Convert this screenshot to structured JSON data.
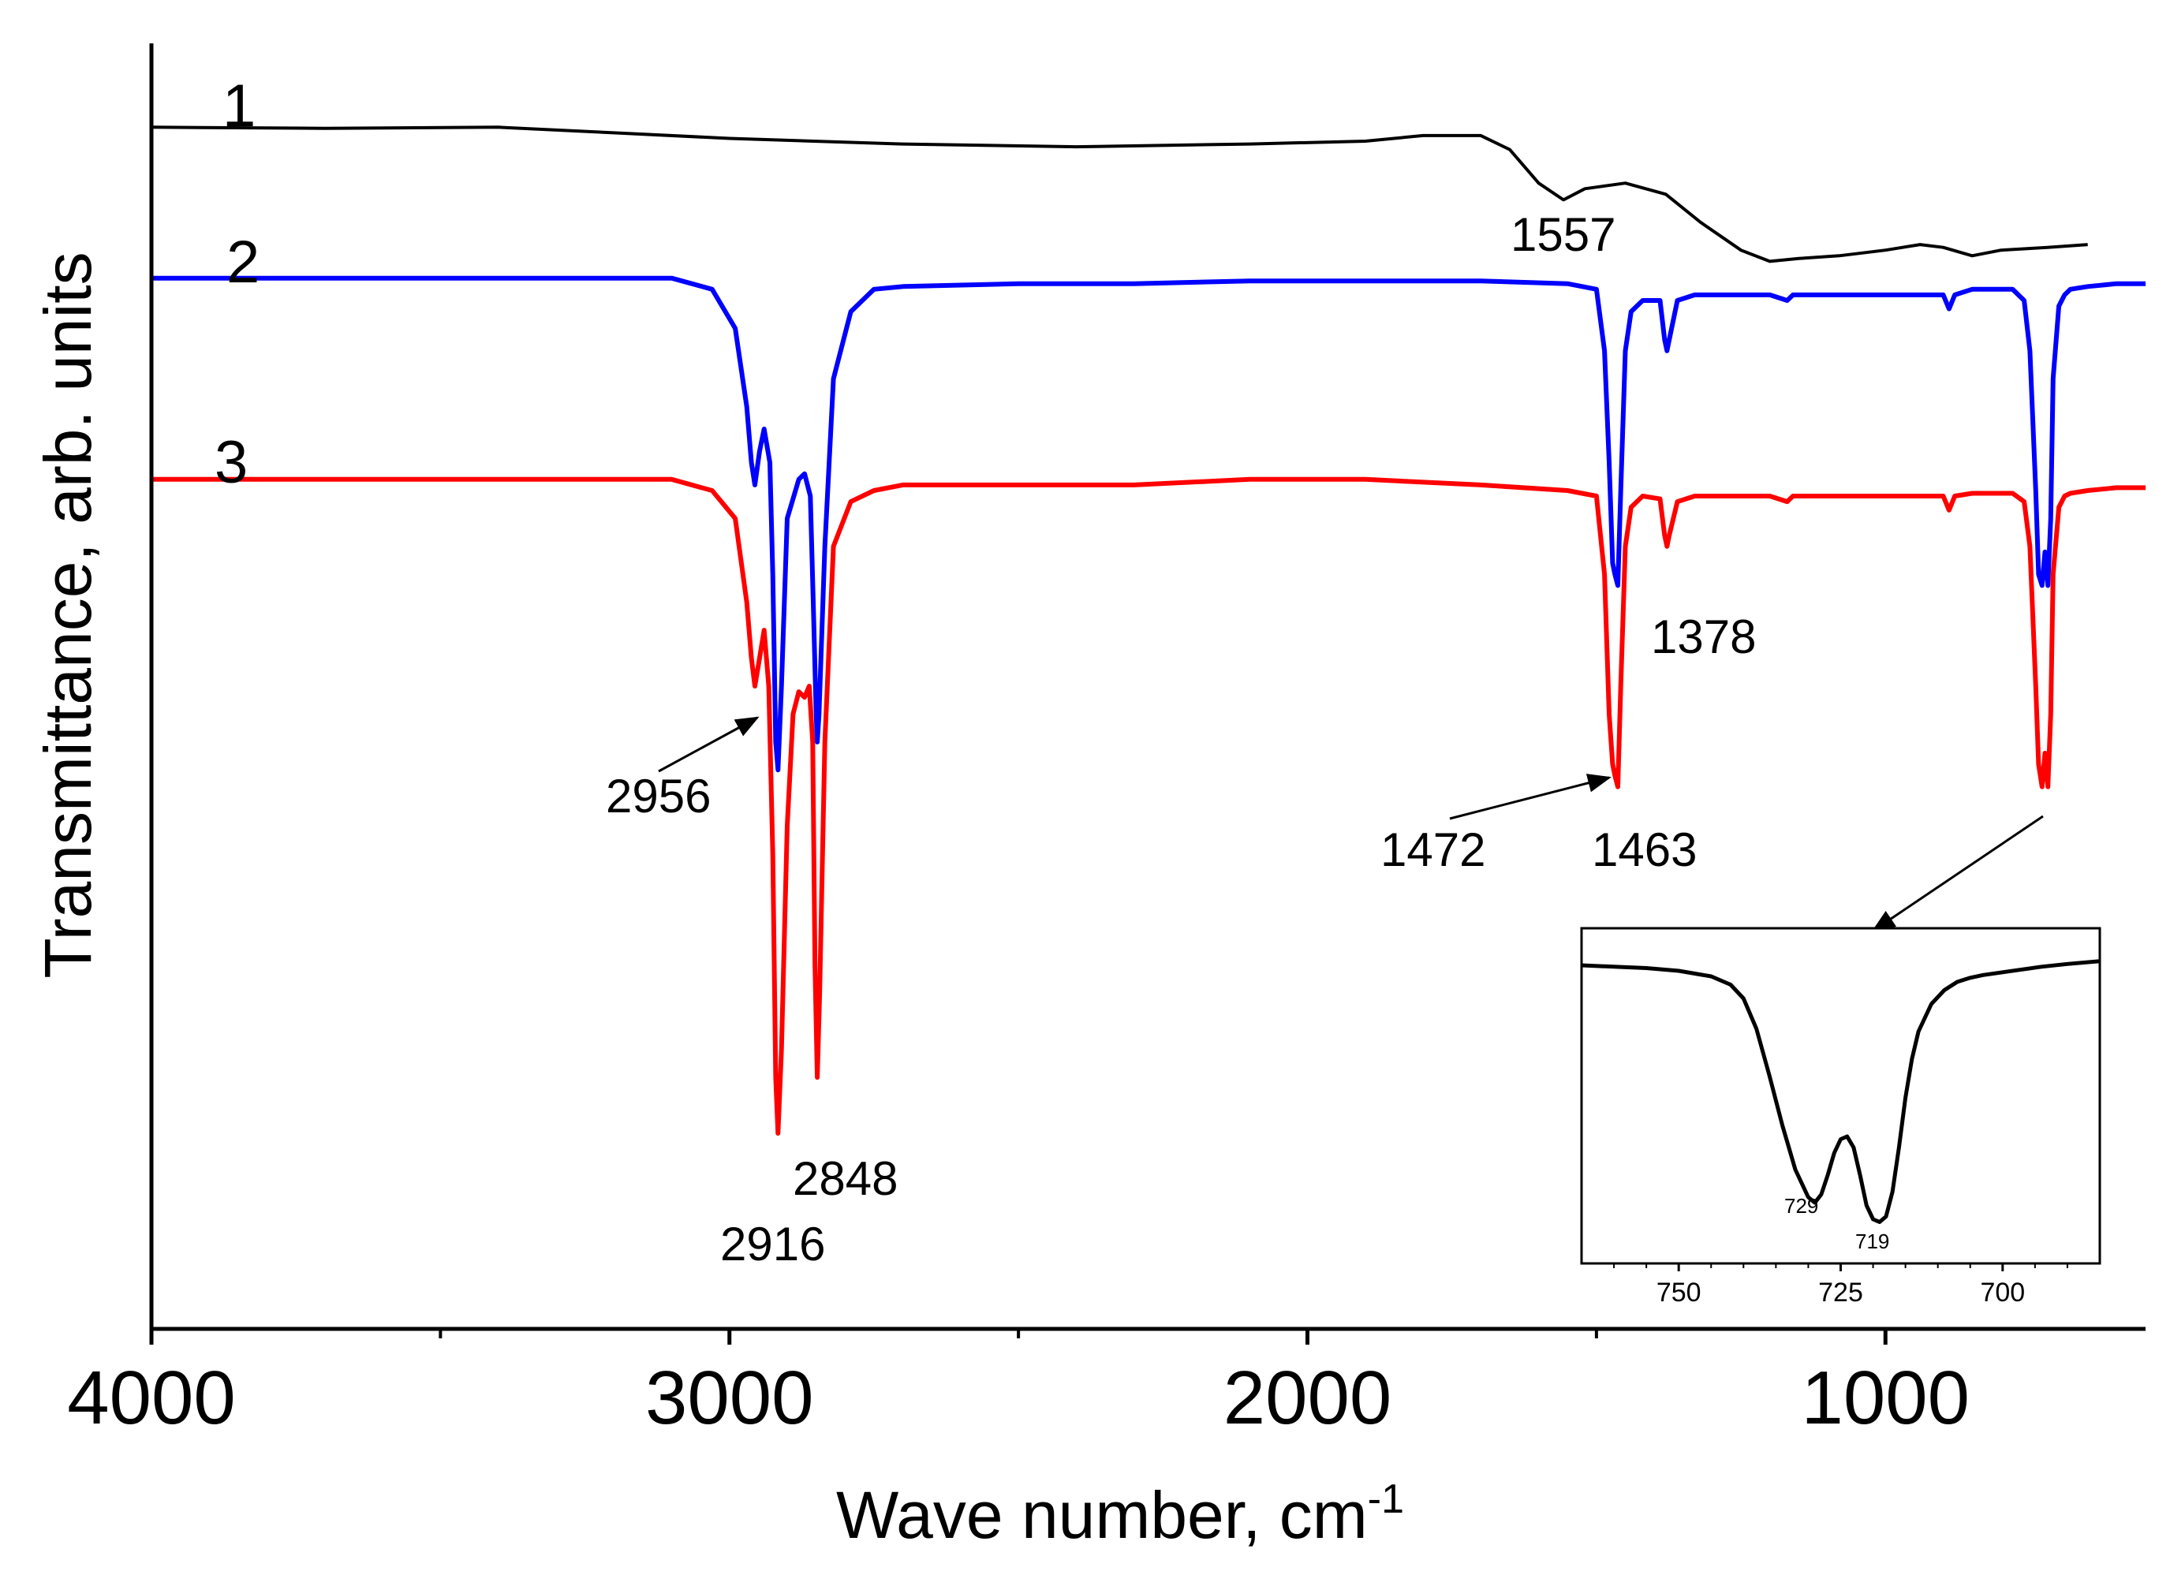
{
  "chart_data": {
    "type": "line",
    "title": "",
    "xlabel": "Wave number, cm",
    "xlabel_superscript": "-1",
    "ylabel": "Transmittance, arb. units",
    "xlim": [
      4000,
      550
    ],
    "ylim": [
      -0.15,
      2.15
    ],
    "x_ticks": [
      4000,
      3000,
      2000,
      1000
    ],
    "x_tick_labels": [
      "4000",
      "3000",
      "2000",
      "1000"
    ],
    "x_minor_ticks": [
      3500,
      2500,
      1500
    ],
    "grid": false,
    "series": [
      {
        "name": "1",
        "color": "#000000",
        "x": [
          4000,
          3700,
          3400,
          3200,
          3000,
          2700,
          2400,
          2100,
          1900,
          1800,
          1700,
          1650,
          1600,
          1557,
          1520,
          1450,
          1380,
          1320,
          1250,
          1200,
          1150,
          1080,
          1000,
          940,
          900,
          850,
          800,
          720,
          650
        ],
        "y": [
          2.0,
          1.998,
          2.0,
          1.99,
          1.98,
          1.97,
          1.965,
          1.97,
          1.975,
          1.985,
          1.985,
          1.96,
          1.9,
          1.87,
          1.89,
          1.9,
          1.88,
          1.83,
          1.78,
          1.76,
          1.765,
          1.77,
          1.78,
          1.79,
          1.785,
          1.77,
          1.78,
          1.785,
          1.79
        ]
      },
      {
        "name": "2",
        "color": "#0000ff",
        "x": [
          4000,
          3100,
          3030,
          2990,
          2970,
          2962,
          2956,
          2948,
          2940,
          2930,
          2925,
          2920,
          2916,
          2910,
          2900,
          2880,
          2870,
          2860,
          2855,
          2850,
          2848,
          2845,
          2835,
          2820,
          2790,
          2750,
          2700,
          2500,
          2300,
          2100,
          1900,
          1700,
          1550,
          1500,
          1486,
          1478,
          1472,
          1468,
          1463,
          1458,
          1450,
          1440,
          1420,
          1390,
          1382,
          1378,
          1374,
          1360,
          1330,
          1200,
          1170,
          1160,
          1000,
          900,
          890,
          880,
          850,
          780,
          760,
          750,
          740,
          735,
          729,
          724,
          719,
          714,
          710,
          700,
          690,
          680,
          650,
          600,
          550
        ],
        "y": [
          1.73,
          1.73,
          1.71,
          1.64,
          1.5,
          1.4,
          1.36,
          1.42,
          1.46,
          1.4,
          1.2,
          0.9,
          0.85,
          1.0,
          1.3,
          1.37,
          1.38,
          1.34,
          1.15,
          0.95,
          0.9,
          0.95,
          1.25,
          1.55,
          1.67,
          1.71,
          1.715,
          1.72,
          1.72,
          1.725,
          1.725,
          1.725,
          1.72,
          1.71,
          1.6,
          1.4,
          1.22,
          1.2,
          1.18,
          1.35,
          1.6,
          1.67,
          1.69,
          1.69,
          1.62,
          1.6,
          1.62,
          1.69,
          1.7,
          1.7,
          1.69,
          1.7,
          1.7,
          1.7,
          1.675,
          1.7,
          1.71,
          1.71,
          1.69,
          1.6,
          1.35,
          1.2,
          1.18,
          1.24,
          1.18,
          1.3,
          1.55,
          1.68,
          1.7,
          1.71,
          1.715,
          1.72,
          1.72
        ]
      },
      {
        "name": "3",
        "color": "#ff0000",
        "x": [
          4000,
          3100,
          3030,
          2990,
          2970,
          2962,
          2956,
          2948,
          2940,
          2932,
          2925,
          2920,
          2916,
          2910,
          2900,
          2890,
          2880,
          2870,
          2862,
          2856,
          2852,
          2848,
          2844,
          2835,
          2820,
          2790,
          2750,
          2700,
          2500,
          2300,
          2100,
          1900,
          1700,
          1550,
          1500,
          1486,
          1478,
          1472,
          1468,
          1463,
          1458,
          1450,
          1440,
          1420,
          1390,
          1382,
          1378,
          1374,
          1360,
          1330,
          1200,
          1170,
          1160,
          1000,
          900,
          890,
          880,
          850,
          780,
          760,
          750,
          740,
          735,
          729,
          724,
          719,
          714,
          710,
          700,
          690,
          680,
          650,
          600,
          550
        ],
        "y": [
          1.37,
          1.37,
          1.35,
          1.3,
          1.15,
          1.05,
          1.0,
          1.05,
          1.1,
          1.0,
          0.7,
          0.3,
          0.2,
          0.35,
          0.75,
          0.95,
          0.99,
          0.98,
          1.0,
          0.9,
          0.5,
          0.3,
          0.45,
          0.9,
          1.25,
          1.33,
          1.35,
          1.36,
          1.36,
          1.36,
          1.37,
          1.37,
          1.36,
          1.35,
          1.34,
          1.2,
          0.95,
          0.86,
          0.84,
          0.82,
          1.0,
          1.25,
          1.32,
          1.34,
          1.335,
          1.27,
          1.25,
          1.27,
          1.33,
          1.34,
          1.34,
          1.33,
          1.34,
          1.34,
          1.34,
          1.315,
          1.34,
          1.345,
          1.345,
          1.33,
          1.25,
          1.0,
          0.86,
          0.82,
          0.88,
          0.82,
          0.95,
          1.2,
          1.32,
          1.34,
          1.345,
          1.35,
          1.355,
          1.355
        ]
      }
    ],
    "curve_labels": [
      "1",
      "2",
      "3"
    ],
    "annotations": [
      "1557",
      "1378",
      "2956",
      "1472",
      "1463",
      "2848",
      "2916"
    ],
    "inset": {
      "type": "line",
      "xlim": [
        765,
        685
      ],
      "ylim": [
        0,
        1
      ],
      "x_ticks": [
        750,
        725,
        700
      ],
      "x_tick_labels": [
        "750",
        "725",
        "700"
      ],
      "x": [
        765,
        760,
        755,
        750,
        745,
        742,
        740,
        738,
        736,
        734,
        732,
        730,
        729,
        728,
        727,
        726,
        725,
        724,
        723,
        722,
        721,
        720,
        719,
        718,
        717,
        716,
        715,
        714,
        713,
        711,
        709,
        707,
        705,
        703,
        700,
        697,
        694,
        690,
        685
      ],
      "y": [
        0.96,
        0.955,
        0.95,
        0.94,
        0.92,
        0.89,
        0.84,
        0.73,
        0.56,
        0.38,
        0.22,
        0.12,
        0.1,
        0.13,
        0.2,
        0.28,
        0.33,
        0.34,
        0.3,
        0.2,
        0.09,
        0.04,
        0.03,
        0.05,
        0.14,
        0.3,
        0.48,
        0.62,
        0.72,
        0.82,
        0.87,
        0.9,
        0.915,
        0.925,
        0.935,
        0.945,
        0.955,
        0.965,
        0.975
      ],
      "annotations": [
        "729",
        "719"
      ]
    }
  }
}
